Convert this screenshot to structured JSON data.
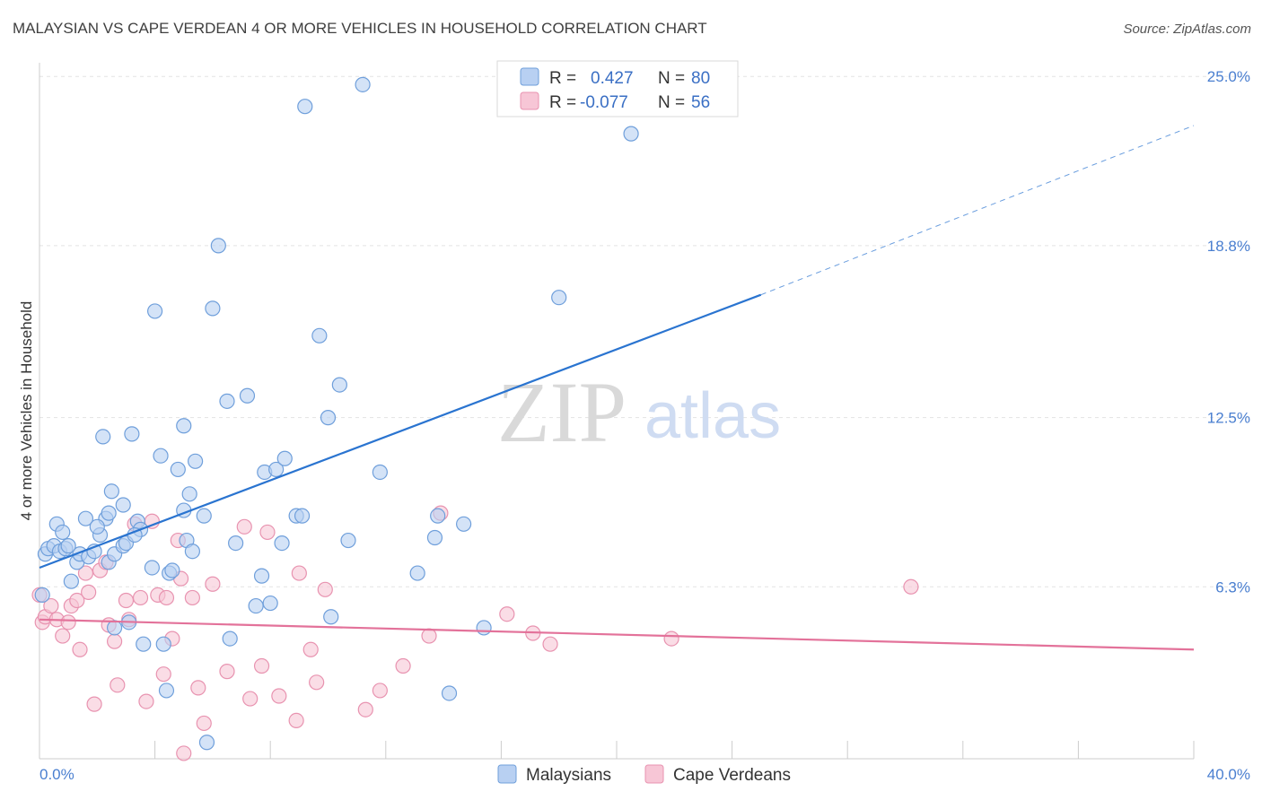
{
  "title": "MALAYSIAN VS CAPE VERDEAN 4 OR MORE VEHICLES IN HOUSEHOLD CORRELATION CHART",
  "source": "Source: ZipAtlas.com",
  "watermark": {
    "zip": "ZIP",
    "atlas": "atlas"
  },
  "colors": {
    "blue_fill": "#b8d0f2",
    "blue_stroke": "#6f9fdb",
    "blue_line": "#2a74d0",
    "pink_fill": "#f7c6d6",
    "pink_stroke": "#e893b0",
    "pink_line": "#e3729a",
    "grid": "#e3e3e3",
    "tick_text": "#4a7fd0"
  },
  "chart_data": {
    "type": "scatter",
    "title": "MALAYSIAN VS CAPE VERDEAN 4 OR MORE VEHICLES IN HOUSEHOLD CORRELATION CHART",
    "xlabel": "",
    "ylabel": "4 or more Vehicles in Household",
    "xlim": [
      0,
      40
    ],
    "ylim": [
      0,
      25.5
    ],
    "x_tick_labels": {
      "min": "0.0%",
      "max": "40.0%"
    },
    "y_ticks": [
      6.3,
      12.5,
      18.8,
      25.0
    ],
    "y_tick_labels": [
      "6.3%",
      "12.5%",
      "18.8%",
      "25.0%"
    ],
    "grid": true,
    "legend_position": "top-center",
    "legend": [
      {
        "r_label": "R =",
        "r_value": "0.427",
        "n_label": "N =",
        "n_value": "80"
      },
      {
        "r_label": "R =",
        "r_value": "-0.077",
        "n_label": "N =",
        "n_value": "56"
      }
    ],
    "series": [
      {
        "name": "Malaysians",
        "trend": {
          "x": [
            0.0,
            25.0
          ],
          "y": [
            7.0,
            17.0
          ],
          "dashed_to": [
            40.0,
            23.2
          ]
        },
        "points": [
          [
            0.2,
            7.5
          ],
          [
            0.3,
            7.7
          ],
          [
            0.5,
            7.8
          ],
          [
            0.6,
            8.6
          ],
          [
            0.7,
            7.6
          ],
          [
            0.8,
            8.3
          ],
          [
            0.9,
            7.7
          ],
          [
            1.1,
            6.5
          ],
          [
            1.3,
            7.2
          ],
          [
            1.4,
            7.5
          ],
          [
            1.6,
            8.8
          ],
          [
            1.7,
            7.4
          ],
          [
            1.9,
            7.6
          ],
          [
            2.1,
            8.2
          ],
          [
            2.2,
            11.8
          ],
          [
            2.3,
            8.8
          ],
          [
            2.4,
            9.0
          ],
          [
            2.4,
            7.2
          ],
          [
            2.5,
            9.8
          ],
          [
            2.6,
            7.5
          ],
          [
            2.6,
            4.8
          ],
          [
            2.9,
            9.3
          ],
          [
            2.9,
            7.8
          ],
          [
            3.0,
            7.9
          ],
          [
            3.1,
            5.0
          ],
          [
            3.2,
            11.9
          ],
          [
            3.4,
            8.7
          ],
          [
            3.5,
            8.4
          ],
          [
            3.6,
            4.2
          ],
          [
            3.9,
            7.0
          ],
          [
            4.0,
            16.4
          ],
          [
            4.2,
            11.1
          ],
          [
            4.3,
            4.2
          ],
          [
            4.4,
            2.5
          ],
          [
            4.5,
            6.8
          ],
          [
            4.6,
            6.9
          ],
          [
            4.8,
            10.6
          ],
          [
            5.0,
            12.2
          ],
          [
            5.0,
            9.1
          ],
          [
            5.1,
            8.0
          ],
          [
            5.2,
            9.7
          ],
          [
            5.3,
            7.6
          ],
          [
            5.4,
            10.9
          ],
          [
            5.7,
            8.9
          ],
          [
            5.8,
            0.6
          ],
          [
            6.0,
            16.5
          ],
          [
            6.2,
            18.8
          ],
          [
            6.5,
            13.1
          ],
          [
            6.6,
            4.4
          ],
          [
            7.2,
            13.3
          ],
          [
            7.5,
            5.6
          ],
          [
            7.7,
            6.7
          ],
          [
            7.8,
            10.5
          ],
          [
            8.0,
            5.7
          ],
          [
            8.2,
            10.6
          ],
          [
            8.4,
            7.9
          ],
          [
            8.5,
            11.0
          ],
          [
            8.9,
            8.9
          ],
          [
            9.1,
            8.9
          ],
          [
            9.2,
            23.9
          ],
          [
            9.7,
            15.5
          ],
          [
            10.0,
            12.5
          ],
          [
            10.1,
            5.2
          ],
          [
            10.4,
            13.7
          ],
          [
            10.7,
            8.0
          ],
          [
            11.2,
            24.7
          ],
          [
            11.8,
            10.5
          ],
          [
            13.1,
            6.8
          ],
          [
            13.7,
            8.1
          ],
          [
            13.8,
            8.9
          ],
          [
            14.2,
            2.4
          ],
          [
            14.7,
            8.6
          ],
          [
            15.4,
            4.8
          ],
          [
            18.0,
            16.9
          ],
          [
            20.5,
            22.9
          ],
          [
            0.1,
            6.0
          ],
          [
            1.0,
            7.8
          ],
          [
            2.0,
            8.5
          ],
          [
            3.3,
            8.2
          ],
          [
            6.8,
            7.9
          ]
        ]
      },
      {
        "name": "Cape Verdeans",
        "trend": {
          "x": [
            0.0,
            40.0
          ],
          "y": [
            5.1,
            4.0
          ]
        },
        "points": [
          [
            0.1,
            5.0
          ],
          [
            0.2,
            5.2
          ],
          [
            0.4,
            5.6
          ],
          [
            0.6,
            5.1
          ],
          [
            0.8,
            4.5
          ],
          [
            1.0,
            5.0
          ],
          [
            1.1,
            5.6
          ],
          [
            1.3,
            5.8
          ],
          [
            1.4,
            4.0
          ],
          [
            1.6,
            6.8
          ],
          [
            1.7,
            6.1
          ],
          [
            1.9,
            2.0
          ],
          [
            2.1,
            6.9
          ],
          [
            2.3,
            7.2
          ],
          [
            2.4,
            4.9
          ],
          [
            2.6,
            4.3
          ],
          [
            2.7,
            2.7
          ],
          [
            3.0,
            5.8
          ],
          [
            3.1,
            5.1
          ],
          [
            3.3,
            8.6
          ],
          [
            3.5,
            5.9
          ],
          [
            3.7,
            2.1
          ],
          [
            3.9,
            8.7
          ],
          [
            4.1,
            6.0
          ],
          [
            4.3,
            3.1
          ],
          [
            4.4,
            5.9
          ],
          [
            4.6,
            4.4
          ],
          [
            4.8,
            8.0
          ],
          [
            4.9,
            6.6
          ],
          [
            5.0,
            0.2
          ],
          [
            5.3,
            5.9
          ],
          [
            5.5,
            2.6
          ],
          [
            5.7,
            1.3
          ],
          [
            6.0,
            6.4
          ],
          [
            6.5,
            3.2
          ],
          [
            7.1,
            8.5
          ],
          [
            7.3,
            2.2
          ],
          [
            7.7,
            3.4
          ],
          [
            7.9,
            8.3
          ],
          [
            8.3,
            2.3
          ],
          [
            8.9,
            1.4
          ],
          [
            9.0,
            6.8
          ],
          [
            9.4,
            4.0
          ],
          [
            9.6,
            2.8
          ],
          [
            9.9,
            6.2
          ],
          [
            11.3,
            1.8
          ],
          [
            11.8,
            2.5
          ],
          [
            12.6,
            3.4
          ],
          [
            13.5,
            4.5
          ],
          [
            13.9,
            9.0
          ],
          [
            16.2,
            5.3
          ],
          [
            17.1,
            4.6
          ],
          [
            17.7,
            4.2
          ],
          [
            21.9,
            4.4
          ],
          [
            30.2,
            6.3
          ],
          [
            0.0,
            6.0
          ]
        ]
      }
    ]
  }
}
